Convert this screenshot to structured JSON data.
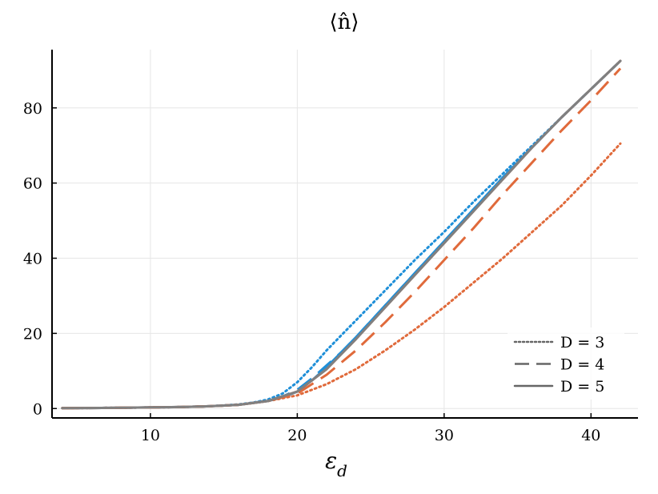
{
  "chart_data": {
    "type": "line",
    "title": "⟨n̂⟩",
    "xlabel": "ε",
    "xlabel_sub": "d",
    "ylabel": "",
    "xlim": [
      3.3,
      43.2
    ],
    "ylim": [
      -2.5,
      95.5
    ],
    "xticks": [
      10,
      20,
      30,
      40
    ],
    "yticks": [
      0,
      20,
      40,
      60,
      80
    ],
    "grid": true,
    "legend_position": "bottom-right",
    "legend": [
      {
        "label": "D = 3",
        "style": "dotted"
      },
      {
        "label": "D = 4",
        "style": "dashed"
      },
      {
        "label": "D = 5",
        "style": "solid"
      }
    ],
    "colors": {
      "blue": "#1e8fd8",
      "orange": "#e06a3b",
      "gray": "#808080",
      "legend_line": "#666666",
      "grid": "#e6e6e6",
      "axis": "#000000"
    },
    "series": [
      {
        "color": "blue",
        "style": "dotted",
        "x": [
          4,
          8,
          12,
          14,
          16,
          17,
          18,
          19,
          20,
          21,
          22,
          23,
          24,
          26,
          28,
          30,
          32,
          34,
          36,
          38,
          40,
          42
        ],
        "values": [
          0.1,
          0.2,
          0.4,
          0.6,
          1.1,
          1.6,
          2.4,
          4.0,
          7.0,
          11.0,
          15.5,
          19.5,
          23.5,
          31.5,
          39.5,
          47.0,
          55.0,
          62.5,
          70.0,
          77.5,
          85.0,
          92.5
        ]
      },
      {
        "color": "blue",
        "style": "dashed",
        "x": [
          4,
          8,
          12,
          14,
          16,
          18,
          19,
          20,
          21,
          22,
          23,
          24,
          26,
          28,
          30,
          32,
          34,
          36,
          38,
          40,
          42
        ],
        "values": [
          0.1,
          0.2,
          0.4,
          0.6,
          1.0,
          2.1,
          3.2,
          5.0,
          8.0,
          11.5,
          15.0,
          19.0,
          27.5,
          36.0,
          44.5,
          53.0,
          61.5,
          69.5,
          77.5,
          85.0,
          92.5
        ]
      },
      {
        "color": "blue",
        "style": "solid",
        "x": [
          4,
          8,
          12,
          14,
          16,
          18,
          19,
          20,
          21,
          22,
          23,
          24,
          26,
          28,
          30,
          32,
          34,
          36,
          38,
          40,
          42
        ],
        "values": [
          0.1,
          0.2,
          0.4,
          0.6,
          1.0,
          2.0,
          3.0,
          4.5,
          7.5,
          11.0,
          15.0,
          19.0,
          27.5,
          36.0,
          44.5,
          53.0,
          61.5,
          69.5,
          77.5,
          85.0,
          92.5
        ]
      },
      {
        "color": "orange",
        "style": "dotted",
        "x": [
          4,
          8,
          12,
          14,
          16,
          18,
          20,
          22,
          24,
          26,
          28,
          30,
          32,
          34,
          36,
          38,
          40,
          42
        ],
        "values": [
          0.1,
          0.2,
          0.4,
          0.6,
          1.0,
          2.0,
          3.5,
          6.5,
          10.5,
          15.5,
          21.0,
          27.0,
          33.5,
          40.0,
          47.0,
          54.0,
          62.0,
          70.5
        ]
      },
      {
        "color": "orange",
        "style": "dashed",
        "x": [
          4,
          8,
          12,
          14,
          16,
          18,
          20,
          22,
          24,
          26,
          28,
          30,
          32,
          34,
          36,
          38,
          40,
          42
        ],
        "values": [
          0.1,
          0.2,
          0.4,
          0.6,
          1.0,
          2.0,
          4.0,
          9.0,
          15.5,
          23.0,
          31.0,
          39.5,
          48.0,
          57.0,
          65.5,
          74.0,
          82.0,
          90.5
        ]
      },
      {
        "color": "orange",
        "style": "solid",
        "x": [
          4,
          8,
          12,
          14,
          16,
          18,
          20,
          22,
          24,
          26,
          28,
          30,
          32,
          34,
          36,
          38,
          40,
          42
        ],
        "values": [
          0.1,
          0.2,
          0.4,
          0.6,
          1.0,
          2.0,
          4.5,
          10.5,
          18.5,
          27.0,
          35.5,
          44.0,
          52.5,
          61.0,
          69.5,
          77.5,
          85.0,
          92.5
        ]
      },
      {
        "color": "gray",
        "style": "solid",
        "x": [
          4,
          8,
          12,
          14,
          16,
          18,
          20,
          22,
          24,
          26,
          28,
          30,
          32,
          34,
          36,
          38,
          40,
          42
        ],
        "values": [
          0.1,
          0.2,
          0.4,
          0.6,
          1.0,
          2.0,
          4.5,
          10.5,
          18.5,
          27.0,
          35.5,
          44.0,
          52.5,
          61.0,
          69.5,
          77.5,
          85.0,
          92.5
        ]
      }
    ]
  }
}
